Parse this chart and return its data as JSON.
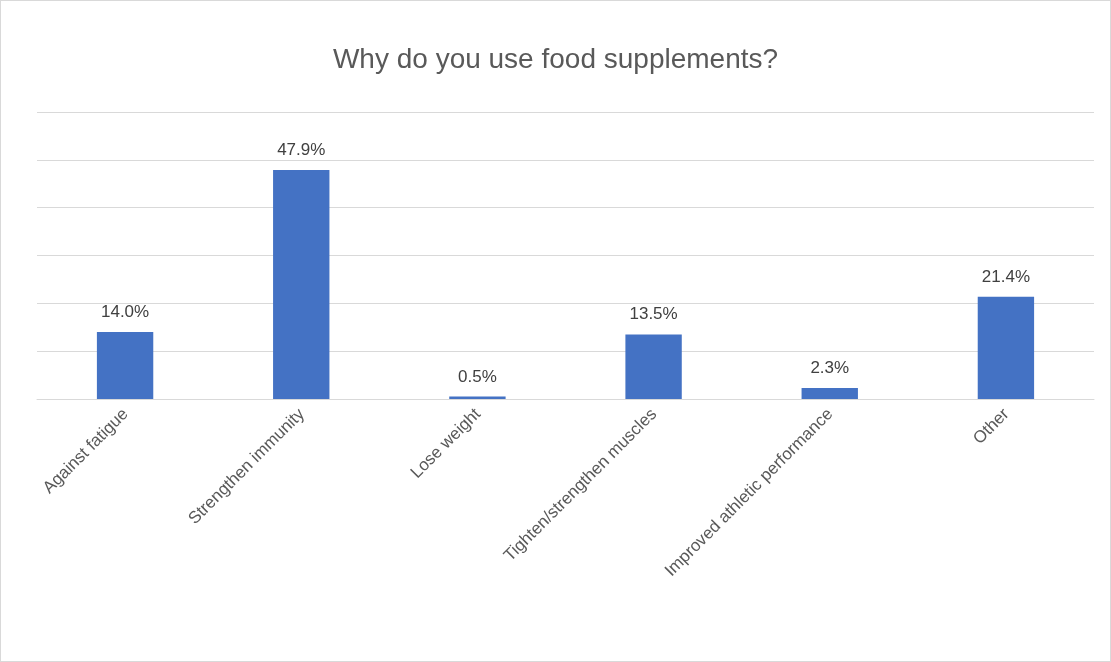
{
  "chart_data": {
    "type": "bar",
    "title": "Why do you use food supplements?",
    "categories": [
      "Against fatigue",
      "Strengthen immunity",
      "Lose weight",
      "Tighten/strengthen muscles",
      "Improved athletic performance",
      "Other"
    ],
    "values": [
      14.0,
      47.9,
      0.5,
      13.5,
      2.3,
      21.4
    ],
    "value_labels": [
      "14.0%",
      "47.9%",
      "0.5%",
      "13.5%",
      "2.3%",
      "21.4%"
    ],
    "color": "#4472c4",
    "ylim": [
      0,
      60
    ],
    "yticks": [
      {
        "value": 0,
        "label": null
      },
      {
        "value": 10,
        "label": null
      },
      {
        "value": 20,
        "label": null
      },
      {
        "value": 30,
        "label": null
      },
      {
        "value": 40,
        "label": null
      },
      {
        "value": 50,
        "label": null
      },
      {
        "value": 60,
        "label": null
      }
    ],
    "grid": "y",
    "tick_labels": "x"
  }
}
